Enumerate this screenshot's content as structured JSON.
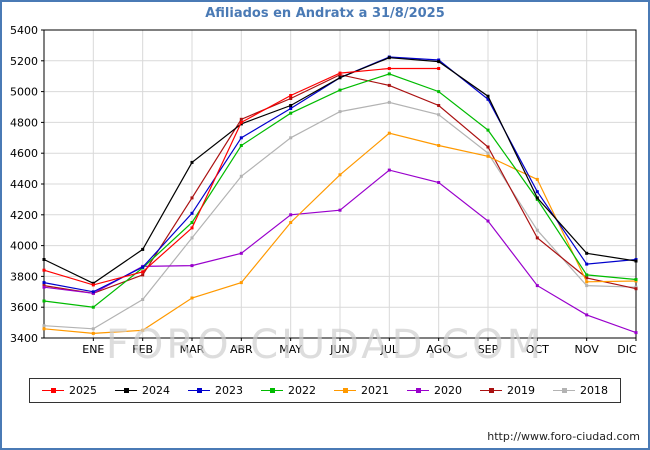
{
  "title": "Afiliados en Andratx a 31/8/2025",
  "watermark": "FORO-CIUDAD.COM",
  "footer_url": "http://www.foro-ciudad.com",
  "colors": {
    "accent": "#4a7ab5",
    "grid": "#d9d9d9",
    "axis": "#000000",
    "watermark": "#cfcfcf",
    "link": "#222222"
  },
  "chart_data": {
    "type": "line",
    "title": "Afiliados en Andratx a 31/8/2025",
    "categories": [
      "ENE",
      "FEB",
      "MAR",
      "ABR",
      "MAY",
      "JUN",
      "JUL",
      "AGO",
      "SEP",
      "OCT",
      "NOV",
      "DIC"
    ],
    "ylim": [
      3400,
      5400
    ],
    "yticks": [
      3400,
      3600,
      3800,
      4000,
      4200,
      4400,
      4600,
      4800,
      5000,
      5200,
      5400
    ],
    "grid": true,
    "legend_position": "bottom",
    "series": [
      {
        "name": "2025",
        "color": "#ff0000",
        "start": 3840,
        "values": [
          3745,
          3830,
          4115,
          4800,
          4975,
          5120,
          5150,
          5150
        ]
      },
      {
        "name": "2024",
        "color": "#000000",
        "start": 3910,
        "values": [
          3755,
          3975,
          4540,
          4790,
          4910,
          5090,
          5220,
          5195,
          4970,
          4310,
          3950,
          3900
        ]
      },
      {
        "name": "2023",
        "color": "#0000cc",
        "start": 3760,
        "values": [
          3700,
          3860,
          4210,
          4700,
          4890,
          5090,
          5225,
          5205,
          4950,
          4350,
          3880,
          3910
        ]
      },
      {
        "name": "2022",
        "color": "#00bb00",
        "start": 3640,
        "values": [
          3600,
          3855,
          4150,
          4650,
          4860,
          5010,
          5115,
          5000,
          4750,
          4300,
          3810,
          3780
        ]
      },
      {
        "name": "2021",
        "color": "#ff9900",
        "start": 3460,
        "values": [
          3430,
          3450,
          3660,
          3760,
          4150,
          4460,
          4730,
          4650,
          4580,
          4430,
          3765,
          3770
        ]
      },
      {
        "name": "2020",
        "color": "#9900cc",
        "start": 3730,
        "values": [
          3690,
          3865,
          3870,
          3950,
          4200,
          4230,
          4490,
          4410,
          4160,
          3740,
          3550,
          3435
        ]
      },
      {
        "name": "2019",
        "color": "#aa1111",
        "start": 3740,
        "values": [
          3690,
          3810,
          4310,
          4820,
          4955,
          5110,
          5040,
          4910,
          4640,
          4050,
          3790,
          3720
        ]
      },
      {
        "name": "2018",
        "color": "#b3b3b3",
        "start": 3480,
        "values": [
          3460,
          3650,
          4050,
          4450,
          4700,
          4870,
          4930,
          4850,
          4600,
          4100,
          3740,
          3730
        ]
      }
    ]
  }
}
